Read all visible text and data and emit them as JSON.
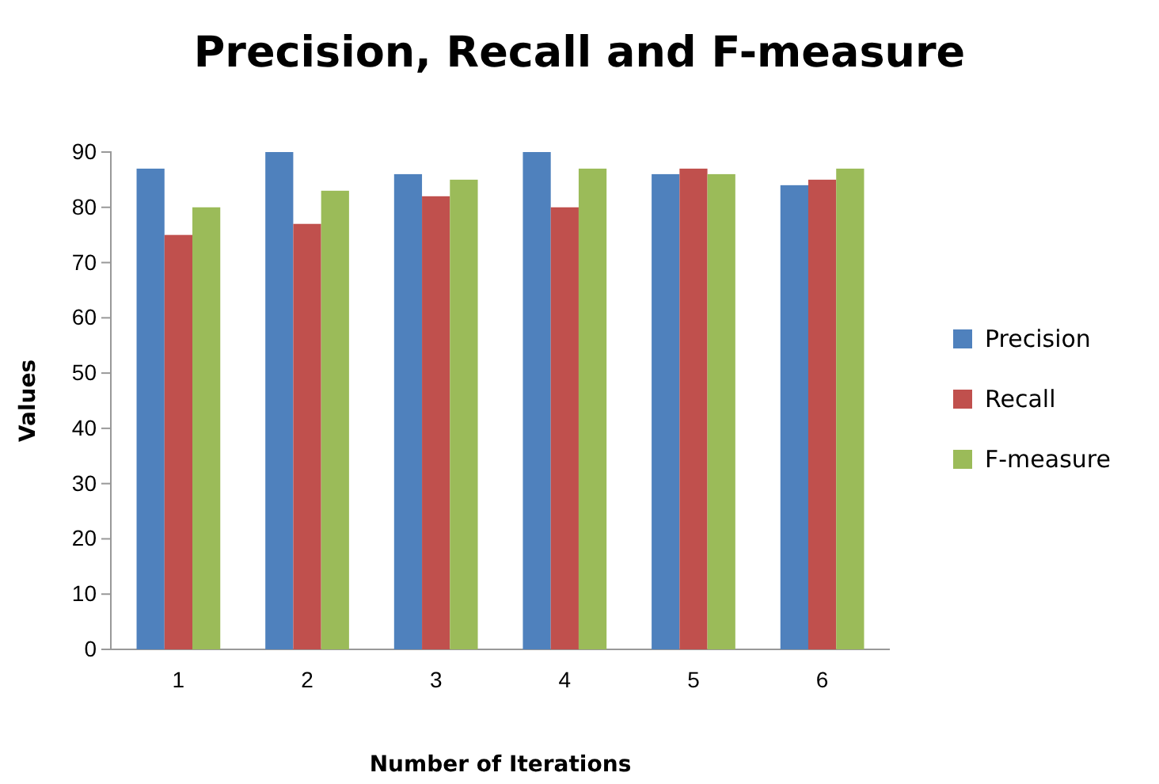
{
  "chart_data": {
    "type": "bar",
    "title": "Precision, Recall and F-measure",
    "xlabel": "Number of Iterations",
    "ylabel": "Values",
    "categories": [
      "1",
      "2",
      "3",
      "4",
      "5",
      "6"
    ],
    "series": [
      {
        "name": "Precision",
        "color": "#4f81bd",
        "values": [
          87,
          90,
          86,
          90,
          86,
          84
        ]
      },
      {
        "name": "Recall",
        "color": "#c0504d",
        "values": [
          75,
          77,
          82,
          80,
          87,
          85
        ]
      },
      {
        "name": "F-measure",
        "color": "#9bbb59",
        "values": [
          80,
          83,
          85,
          87,
          86,
          87
        ]
      }
    ],
    "ylim": [
      0,
      90
    ],
    "yticks": [
      0,
      10,
      20,
      30,
      40,
      50,
      60,
      70,
      80,
      90
    ],
    "grid": false,
    "legend": "right"
  }
}
